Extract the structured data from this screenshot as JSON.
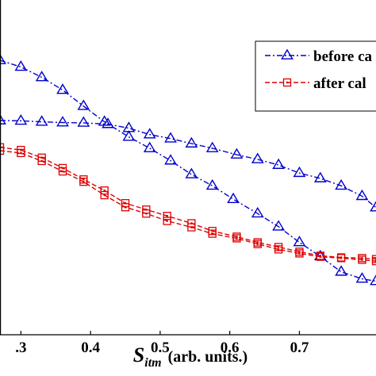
{
  "chart_data": {
    "type": "line",
    "title": "",
    "xlabel": {
      "symbol": "S",
      "subscript": "itm",
      "units": "(arb. units.)"
    },
    "ylabel": "",
    "xlim": [
      0.27,
      0.81
    ],
    "ylim": [
      0,
      1
    ],
    "x_ticks": [
      {
        "value": 0.3,
        "label": ".3"
      },
      {
        "value": 0.4,
        "label": "0.4"
      },
      {
        "value": 0.5,
        "label": "0.5"
      },
      {
        "value": 0.6,
        "label": "0.6"
      },
      {
        "value": 0.7,
        "label": "0.7"
      }
    ],
    "grid": false,
    "legend_placement": "top-right",
    "series": [
      {
        "name": "before ca",
        "color": "#0000cc",
        "marker": "triangle",
        "line_style": "dash-dot",
        "branches": [
          {
            "x": [
              0.27,
              0.3,
              0.33,
              0.36,
              0.39,
              0.42,
              0.455,
              0.485,
              0.515,
              0.545,
              0.575,
              0.605,
              0.64,
              0.67,
              0.7,
              0.73,
              0.76,
              0.79,
              0.81
            ],
            "y": [
              0.82,
              0.8,
              0.769,
              0.731,
              0.683,
              0.636,
              0.591,
              0.557,
              0.52,
              0.479,
              0.445,
              0.405,
              0.362,
              0.323,
              0.276,
              0.234,
              0.188,
              0.167,
              0.16
            ]
          },
          {
            "x": [
              0.27,
              0.3,
              0.33,
              0.36,
              0.39,
              0.425,
              0.455,
              0.485,
              0.515,
              0.545,
              0.575,
              0.61,
              0.64,
              0.67,
              0.7,
              0.73,
              0.76,
              0.79,
              0.81
            ],
            "y": [
              0.64,
              0.639,
              0.636,
              0.634,
              0.633,
              0.629,
              0.617,
              0.598,
              0.586,
              0.571,
              0.557,
              0.538,
              0.524,
              0.507,
              0.483,
              0.467,
              0.445,
              0.414,
              0.38
            ]
          }
        ]
      },
      {
        "name": "after cal",
        "color": "#dd0000",
        "marker": "square",
        "line_style": "dashed",
        "branches": [
          {
            "x": [
              0.27,
              0.3,
              0.33,
              0.36,
              0.39,
              0.42,
              0.45,
              0.48,
              0.51,
              0.545,
              0.575,
              0.61,
              0.64,
              0.67,
              0.7,
              0.73,
              0.76,
              0.79,
              0.81
            ],
            "y": [
              0.55,
              0.543,
              0.519,
              0.488,
              0.457,
              0.417,
              0.381,
              0.362,
              0.34,
              0.321,
              0.302,
              0.288,
              0.271,
              0.255,
              0.243,
              0.233,
              0.229,
              0.224,
              0.22
            ]
          },
          {
            "x": [
              0.27,
              0.3,
              0.33,
              0.36,
              0.39,
              0.42,
              0.45,
              0.48,
              0.51,
              0.545,
              0.575,
              0.61,
              0.64,
              0.67,
              0.7,
              0.73,
              0.76,
              0.79,
              0.81
            ],
            "y": [
              0.56,
              0.552,
              0.529,
              0.498,
              0.464,
              0.431,
              0.393,
              0.374,
              0.355,
              0.333,
              0.31,
              0.293,
              0.276,
              0.262,
              0.248,
              0.236,
              0.231,
              0.229,
              0.226
            ]
          }
        ]
      }
    ]
  }
}
